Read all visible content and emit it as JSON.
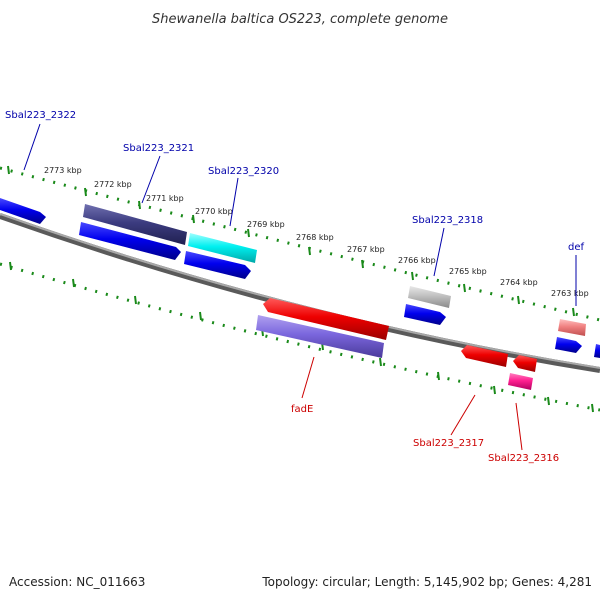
{
  "title": "Shewanella baltica OS223, complete genome",
  "footer": {
    "accession": "Accession: NC_011663",
    "summary": "Topology: circular; Length: 5,145,902 bp; Genes: 4,281"
  },
  "colors": {
    "tick": "#1a8a1a",
    "backbone": "#808080",
    "forward_label": "#0000aa",
    "reverse_label": "#cc0000",
    "forward_gene": "#0000ee",
    "reverse_gene": "#ee0000"
  },
  "scale_ticks": [
    "2773 kbp",
    "2772 kbp",
    "2771 kbp",
    "2770 kbp",
    "2769 kbp",
    "2768 kbp",
    "2767 kbp",
    "2766 kbp",
    "2765 kbp",
    "2764 kbp",
    "2763 kbp"
  ],
  "gene_labels": {
    "forward": [
      "Sbal223_2322",
      "Sbal223_2321",
      "Sbal223_2320",
      "Sbal223_2318",
      "def"
    ],
    "reverse": [
      "fadE",
      "Sbal223_2317",
      "Sbal223_2316"
    ]
  }
}
